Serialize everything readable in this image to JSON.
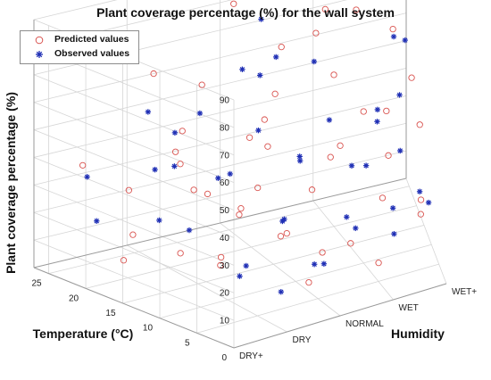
{
  "chart_data": {
    "type": "scatter",
    "title": "Plant coverage percentage (%) for the wall system",
    "xlabel": "Humidity",
    "ylabel": "Temperature (°C)",
    "zlabel": "Plant coverage percentage (%)",
    "x_ticks": [
      "DRY+",
      "DRY",
      "NORMAL",
      "WET",
      "WET+"
    ],
    "y_ticks": [
      "0",
      "5",
      "10",
      "15",
      "20",
      "25"
    ],
    "z_ticks": [
      "10",
      "20",
      "30",
      "40",
      "50",
      "60",
      "70",
      "80",
      "90"
    ],
    "xlim": [
      "DRY+",
      "WET+"
    ],
    "ylim": [
      0,
      27
    ],
    "zlim": [
      0,
      90
    ],
    "grid": true,
    "legend_position": "top-left",
    "series": [
      {
        "name": "Predicted values",
        "marker": "circle",
        "color": "#d9534f",
        "points": [
          {
            "x": 1.0,
            "y": 26.0,
            "z": 5
          },
          {
            "x": 0.2,
            "y": 17.0,
            "z": 12
          },
          {
            "x": 0.5,
            "y": 12.0,
            "z": 18
          },
          {
            "x": 0.8,
            "y": 9.0,
            "z": 15
          },
          {
            "x": 0.4,
            "y": 5.0,
            "z": 25
          },
          {
            "x": 1.2,
            "y": 3.0,
            "z": 30
          },
          {
            "x": 0.6,
            "y": 21.0,
            "z": 30
          },
          {
            "x": 1.5,
            "y": 14.0,
            "z": 25
          },
          {
            "x": 1.8,
            "y": 9.0,
            "z": 20
          },
          {
            "x": 1.0,
            "y": 18.0,
            "z": 40
          },
          {
            "x": 0.3,
            "y": 24.0,
            "z": 38
          },
          {
            "x": 2.0,
            "y": 4.0,
            "z": 18
          },
          {
            "x": 2.3,
            "y": 11.0,
            "z": 30
          },
          {
            "x": 2.6,
            "y": 6.0,
            "z": 15
          },
          {
            "x": 1.3,
            "y": 22.0,
            "z": 45
          },
          {
            "x": 2.0,
            "y": 17.0,
            "z": 50
          },
          {
            "x": 1.7,
            "y": 25.0,
            "z": 55
          },
          {
            "x": 2.8,
            "y": 13.0,
            "z": 40
          },
          {
            "x": 3.0,
            "y": 20.0,
            "z": 55
          },
          {
            "x": 2.5,
            "y": 23.0,
            "z": 65
          },
          {
            "x": 3.2,
            "y": 8.0,
            "z": 25
          },
          {
            "x": 3.5,
            "y": 15.0,
            "z": 45
          },
          {
            "x": 3.1,
            "y": 26.0,
            "z": 70
          },
          {
            "x": 3.7,
            "y": 5.0,
            "z": 20
          },
          {
            "x": 3.9,
            "y": 18.0,
            "z": 50
          },
          {
            "x": 3.4,
            "y": 11.0,
            "z": 35
          },
          {
            "x": 3.8,
            "y": 24.0,
            "z": 60
          },
          {
            "x": 0.9,
            "y": 7.0,
            "z": 35
          },
          {
            "x": 1.6,
            "y": 2.0,
            "z": 12
          },
          {
            "x": 2.2,
            "y": 20.0,
            "z": 35
          },
          {
            "x": 2.9,
            "y": 3.0,
            "z": 10
          },
          {
            "x": 0.7,
            "y": 15.0,
            "z": 50
          },
          {
            "x": 1.4,
            "y": 11.0,
            "z": 55
          },
          {
            "x": 2.4,
            "y": 8.0,
            "z": 45
          },
          {
            "x": 3.3,
            "y": 21.0,
            "z": 75
          },
          {
            "x": 3.6,
            "y": 2.0,
            "z": 30
          },
          {
            "x": 1.9,
            "y": 13.0,
            "z": 65
          },
          {
            "x": 2.7,
            "y": 18.0,
            "z": 75
          },
          {
            "x": 0.4,
            "y": 9.0,
            "z": 45
          },
          {
            "x": 1.1,
            "y": 24.0,
            "z": 65
          },
          {
            "x": 3.0,
            "y": 10.0,
            "z": 55
          },
          {
            "x": 3.9,
            "y": 13.0,
            "z": 40
          },
          {
            "x": 2.1,
            "y": 26.0,
            "z": 80
          },
          {
            "x": 1.2,
            "y": 16.0,
            "z": 30
          },
          {
            "x": 0.8,
            "y": 3.0,
            "z": 50
          }
        ]
      },
      {
        "name": "Observed values",
        "marker": "asterisk",
        "color": "#1f2fb5",
        "points": [
          {
            "x": 0.3,
            "y": 22.0,
            "z": 20
          },
          {
            "x": 0.8,
            "y": 14.0,
            "z": 22
          },
          {
            "x": 1.1,
            "y": 8.0,
            "z": 14
          },
          {
            "x": 0.6,
            "y": 4.0,
            "z": 18
          },
          {
            "x": 1.6,
            "y": 20.0,
            "z": 28
          },
          {
            "x": 1.9,
            "y": 11.0,
            "z": 22
          },
          {
            "x": 2.1,
            "y": 5.0,
            "z": 12
          },
          {
            "x": 1.4,
            "y": 25.0,
            "z": 40
          },
          {
            "x": 2.4,
            "y": 16.0,
            "z": 35
          },
          {
            "x": 2.7,
            "y": 9.0,
            "z": 20
          },
          {
            "x": 2.3,
            "y": 24.0,
            "z": 55
          },
          {
            "x": 3.0,
            "y": 14.0,
            "z": 30
          },
          {
            "x": 3.3,
            "y": 6.0,
            "z": 14
          },
          {
            "x": 2.8,
            "y": 21.0,
            "z": 60
          },
          {
            "x": 3.5,
            "y": 19.0,
            "z": 40
          },
          {
            "x": 3.8,
            "y": 9.0,
            "z": 22
          },
          {
            "x": 3.2,
            "y": 25.0,
            "z": 85
          },
          {
            "x": 3.7,
            "y": 16.0,
            "z": 48
          },
          {
            "x": 3.9,
            "y": 22.0,
            "z": 58
          },
          {
            "x": 2.0,
            "y": 22.0,
            "z": 62
          },
          {
            "x": 1.0,
            "y": 19.0,
            "z": 38
          },
          {
            "x": 0.5,
            "y": 26.0,
            "z": 30
          },
          {
            "x": 1.5,
            "y": 6.0,
            "z": 30
          },
          {
            "x": 2.5,
            "y": 3.0,
            "z": 25
          },
          {
            "x": 3.1,
            "y": 2.0,
            "z": 30
          },
          {
            "x": 3.6,
            "y": 12.0,
            "z": 34
          },
          {
            "x": 1.8,
            "y": 15.0,
            "z": 50
          },
          {
            "x": 2.6,
            "y": 12.0,
            "z": 52
          },
          {
            "x": 3.4,
            "y": 23.0,
            "z": 78
          },
          {
            "x": 1.2,
            "y": 12.0,
            "z": 42
          },
          {
            "x": 0.2,
            "y": 12.0,
            "z": 32
          },
          {
            "x": 2.2,
            "y": 18.0,
            "z": 70
          },
          {
            "x": 3.0,
            "y": 26.0,
            "z": 90
          },
          {
            "x": 3.8,
            "y": 4.0,
            "z": 25
          },
          {
            "x": 1.7,
            "y": 2.0,
            "z": 18
          },
          {
            "x": 0.9,
            "y": 22.0,
            "z": 55
          },
          {
            "x": 2.9,
            "y": 7.0,
            "z": 40
          },
          {
            "x": 3.5,
            "y": 26.0,
            "z": 80
          },
          {
            "x": 1.3,
            "y": 4.0,
            "z": 8
          },
          {
            "x": 2.0,
            "y": 9.0,
            "z": 45
          },
          {
            "x": 0.6,
            "y": 17.0,
            "z": 42
          },
          {
            "x": 3.7,
            "y": 19.0,
            "z": 65
          },
          {
            "x": 2.4,
            "y": 26.0,
            "z": 72
          },
          {
            "x": 1.1,
            "y": 16.0,
            "z": 60
          },
          {
            "x": 3.2,
            "y": 10.0,
            "z": 50
          }
        ]
      }
    ]
  }
}
